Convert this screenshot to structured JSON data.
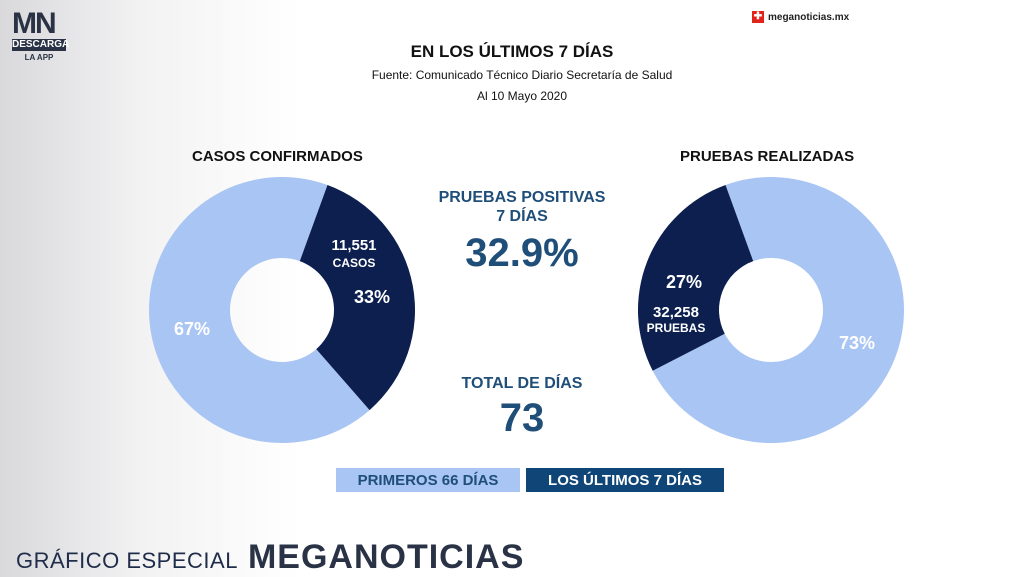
{
  "logo": {
    "letters": "MN",
    "descarga": "DESCARGA",
    "app": "LA APP"
  },
  "brand": {
    "icon": "meganoticias-logo-icon",
    "text": "meganoticias.mx"
  },
  "header": {
    "title": "EN LOS ÚLTIMOS 7 DÍAS",
    "subtitle": "Fuente: Comunicado Técnico Diario Secretaría de Salud",
    "date": "Al 10 Mayo 2020"
  },
  "center": {
    "positive_label_1": "PRUEBAS POSITIVAS",
    "positive_label_2": "7 DÍAS",
    "positive_value": "32.9%",
    "total_label": "TOTAL DE DÍAS",
    "total_value": "73"
  },
  "legend": {
    "first": "PRIMEROS 66 DÍAS",
    "last": "LOS ÚLTIMOS 7 DÍAS"
  },
  "colors": {
    "light": "#a9c5f4",
    "dark": "#0c1f4f",
    "accent_text": "#1f4e79",
    "legend_dark": "#0f4677"
  },
  "footer": {
    "small": "GRÁFICO ESPECIAL",
    "big": "MEGANOTICIAS"
  },
  "chart_data": [
    {
      "type": "pie",
      "title": "CASOS CONFIRMADOS",
      "series": [
        {
          "name": "PRIMEROS 66 DÍAS",
          "value": 67,
          "label": "67%"
        },
        {
          "name": "LOS ÚLTIMOS 7 DÍAS",
          "value": 33,
          "label": "33%",
          "annotation_1": "11,551",
          "annotation_2": "CASOS"
        }
      ]
    },
    {
      "type": "pie",
      "title": "PRUEBAS REALIZADAS",
      "series": [
        {
          "name": "PRIMEROS 66 DÍAS",
          "value": 73,
          "label": "73%"
        },
        {
          "name": "LOS ÚLTIMOS 7 DÍAS",
          "value": 27,
          "label": "27%",
          "annotation_1": "32,258",
          "annotation_2": "PRUEBAS"
        }
      ]
    }
  ]
}
